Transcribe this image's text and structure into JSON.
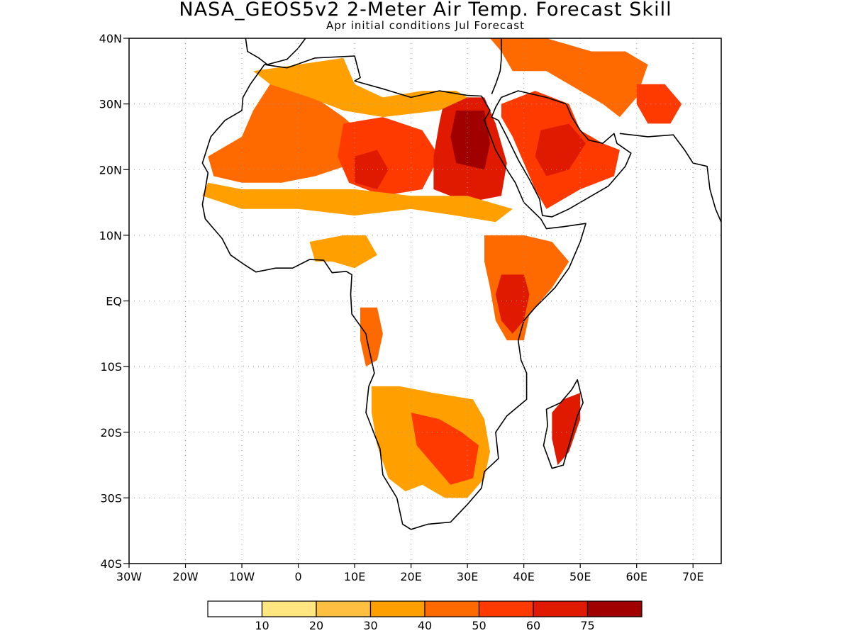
{
  "title": "NASA_GEOS5v2 2-Meter Air Temp. Forecast Skill",
  "subtitle": "Apr initial conditions  Jul Forecast",
  "map": {
    "region": "Africa and Arabian Peninsula",
    "lon_range": [
      -30,
      75
    ],
    "lat_range": [
      -40,
      40
    ],
    "grid": "dotted",
    "y_ticks": [
      {
        "value": 40,
        "label": "40N"
      },
      {
        "value": 30,
        "label": "30N"
      },
      {
        "value": 20,
        "label": "20N"
      },
      {
        "value": 10,
        "label": "10N"
      },
      {
        "value": 0,
        "label": "EQ"
      },
      {
        "value": -10,
        "label": "10S"
      },
      {
        "value": -20,
        "label": "20S"
      },
      {
        "value": -30,
        "label": "30S"
      },
      {
        "value": -40,
        "label": "40S"
      }
    ],
    "x_ticks": [
      {
        "value": -30,
        "label": "30W"
      },
      {
        "value": -20,
        "label": "20W"
      },
      {
        "value": -10,
        "label": "10W"
      },
      {
        "value": 0,
        "label": "0"
      },
      {
        "value": 10,
        "label": "10E"
      },
      {
        "value": 20,
        "label": "20E"
      },
      {
        "value": 30,
        "label": "30E"
      },
      {
        "value": 40,
        "label": "40E"
      },
      {
        "value": 50,
        "label": "50E"
      },
      {
        "value": 60,
        "label": "60E"
      },
      {
        "value": 70,
        "label": "70E"
      }
    ]
  },
  "colorbar": {
    "colors": [
      "#ffffff",
      "#ffe680",
      "#ffbf40",
      "#ffa000",
      "#ff6a00",
      "#ff3a00",
      "#e01a00",
      "#a00000"
    ],
    "labels": [
      "10",
      "20",
      "30",
      "40",
      "50",
      "60",
      "75"
    ]
  },
  "skill_regions": [
    {
      "name": "sahara-west",
      "level": 4,
      "pts": [
        [
          -5,
          33
        ],
        [
          3,
          31
        ],
        [
          8,
          28
        ],
        [
          12,
          25
        ],
        [
          10,
          21
        ],
        [
          3,
          19
        ],
        [
          -3,
          18
        ],
        [
          -10,
          18
        ],
        [
          -15,
          19
        ],
        [
          -16,
          22
        ],
        [
          -10,
          25
        ],
        [
          -8,
          29
        ]
      ]
    },
    {
      "name": "sahara-central",
      "level": 5,
      "pts": [
        [
          8,
          27
        ],
        [
          15,
          28
        ],
        [
          22,
          26
        ],
        [
          25,
          22
        ],
        [
          22,
          17
        ],
        [
          15,
          16
        ],
        [
          9,
          18
        ],
        [
          7,
          22
        ]
      ]
    },
    {
      "name": "sahara-core",
      "level": 6,
      "pts": [
        [
          10,
          22
        ],
        [
          14,
          23
        ],
        [
          16,
          20
        ],
        [
          14,
          17
        ],
        [
          10,
          18
        ]
      ]
    },
    {
      "name": "egypt-sudan",
      "level": 6,
      "pts": [
        [
          26,
          31
        ],
        [
          33,
          31
        ],
        [
          35,
          27
        ],
        [
          37,
          21
        ],
        [
          36,
          16
        ],
        [
          30,
          15
        ],
        [
          24,
          17
        ],
        [
          24,
          22
        ],
        [
          25,
          27
        ]
      ]
    },
    {
      "name": "egypt-core",
      "level": 7,
      "pts": [
        [
          28,
          29
        ],
        [
          33,
          29
        ],
        [
          34,
          24
        ],
        [
          33,
          20
        ],
        [
          28,
          21
        ],
        [
          27,
          25
        ]
      ]
    },
    {
      "name": "sahel",
      "level": 3,
      "pts": [
        [
          -17,
          16
        ],
        [
          -10,
          14
        ],
        [
          0,
          14
        ],
        [
          10,
          13
        ],
        [
          20,
          14
        ],
        [
          28,
          13
        ],
        [
          35,
          12
        ],
        [
          38,
          14
        ],
        [
          30,
          16
        ],
        [
          20,
          16
        ],
        [
          10,
          17
        ],
        [
          0,
          17
        ],
        [
          -10,
          17
        ],
        [
          -16,
          18
        ]
      ]
    },
    {
      "name": "north-africa",
      "level": 3,
      "pts": [
        [
          -8,
          35
        ],
        [
          0,
          36
        ],
        [
          8,
          37
        ],
        [
          10,
          33
        ],
        [
          15,
          31
        ],
        [
          22,
          32
        ],
        [
          28,
          32
        ],
        [
          30,
          31
        ],
        [
          25,
          29
        ],
        [
          15,
          28
        ],
        [
          8,
          29
        ],
        [
          2,
          31
        ],
        [
          -5,
          33
        ]
      ]
    },
    {
      "name": "arabia",
      "level": 5,
      "pts": [
        [
          36,
          30
        ],
        [
          42,
          32
        ],
        [
          48,
          30
        ],
        [
          50,
          26
        ],
        [
          54,
          24
        ],
        [
          57,
          23
        ],
        [
          56,
          19
        ],
        [
          50,
          17
        ],
        [
          44,
          14
        ],
        [
          42,
          17
        ],
        [
          40,
          21
        ],
        [
          38,
          25
        ],
        [
          36,
          28
        ]
      ]
    },
    {
      "name": "arabia-core",
      "level": 6,
      "pts": [
        [
          43,
          26
        ],
        [
          48,
          27
        ],
        [
          51,
          24
        ],
        [
          48,
          20
        ],
        [
          44,
          19
        ],
        [
          42,
          22
        ]
      ]
    },
    {
      "name": "middle-east",
      "level": 4,
      "pts": [
        [
          34,
          40
        ],
        [
          44,
          40
        ],
        [
          52,
          38
        ],
        [
          58,
          38
        ],
        [
          62,
          36
        ],
        [
          60,
          31
        ],
        [
          57,
          28
        ],
        [
          54,
          30
        ],
        [
          50,
          32
        ],
        [
          44,
          35
        ],
        [
          38,
          35
        ],
        [
          36,
          38
        ]
      ]
    },
    {
      "name": "iran-east",
      "level": 5,
      "pts": [
        [
          60,
          33
        ],
        [
          65,
          33
        ],
        [
          68,
          30
        ],
        [
          66,
          27
        ],
        [
          62,
          27
        ],
        [
          60,
          30
        ]
      ]
    },
    {
      "name": "east-africa",
      "level": 4,
      "pts": [
        [
          33,
          10
        ],
        [
          40,
          10
        ],
        [
          45,
          9
        ],
        [
          48,
          6
        ],
        [
          45,
          2
        ],
        [
          41,
          -2
        ],
        [
          40,
          -6
        ],
        [
          37,
          -6
        ],
        [
          35,
          -3
        ],
        [
          34,
          2
        ],
        [
          33,
          6
        ]
      ]
    },
    {
      "name": "kenya",
      "level": 6,
      "pts": [
        [
          36,
          4
        ],
        [
          40,
          4
        ],
        [
          41,
          1
        ],
        [
          40,
          -3
        ],
        [
          38,
          -5
        ],
        [
          36,
          -3
        ],
        [
          35,
          1
        ]
      ]
    },
    {
      "name": "central-west",
      "level": 3,
      "pts": [
        [
          2,
          9
        ],
        [
          8,
          10
        ],
        [
          12,
          10
        ],
        [
          14,
          7
        ],
        [
          10,
          5
        ],
        [
          6,
          6
        ],
        [
          3,
          6
        ]
      ]
    },
    {
      "name": "congo-west",
      "level": 4,
      "pts": [
        [
          11,
          -1
        ],
        [
          14,
          -1
        ],
        [
          15,
          -5
        ],
        [
          14,
          -9
        ],
        [
          12,
          -10
        ],
        [
          11,
          -6
        ]
      ]
    },
    {
      "name": "southern-africa",
      "level": 3,
      "pts": [
        [
          13,
          -13
        ],
        [
          18,
          -13
        ],
        [
          24,
          -14
        ],
        [
          31,
          -15
        ],
        [
          33,
          -18
        ],
        [
          34,
          -23
        ],
        [
          33,
          -27
        ],
        [
          30,
          -30
        ],
        [
          26,
          -30
        ],
        [
          22,
          -28
        ],
        [
          19,
          -29
        ],
        [
          16,
          -27
        ],
        [
          14,
          -22
        ],
        [
          13,
          -17
        ]
      ]
    },
    {
      "name": "southern-core",
      "level": 5,
      "pts": [
        [
          20,
          -17
        ],
        [
          25,
          -18
        ],
        [
          29,
          -20
        ],
        [
          32,
          -22
        ],
        [
          31,
          -27
        ],
        [
          27,
          -28
        ],
        [
          24,
          -25
        ],
        [
          21,
          -22
        ]
      ]
    },
    {
      "name": "madagascar",
      "level": 6,
      "pts": [
        [
          47,
          -15
        ],
        [
          50,
          -14
        ],
        [
          50,
          -18
        ],
        [
          48,
          -23
        ],
        [
          46,
          -25
        ],
        [
          45,
          -21
        ],
        [
          45,
          -17
        ]
      ]
    }
  ]
}
